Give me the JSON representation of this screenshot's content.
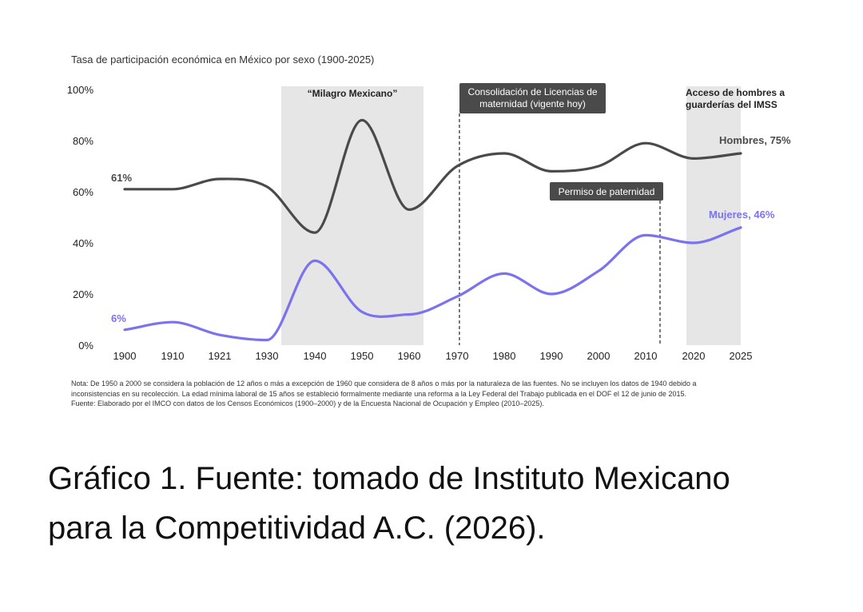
{
  "chart_data": {
    "type": "line",
    "title": "Tasa de participación económica en México por sexo (1900-2025)",
    "xlabel": "",
    "ylabel": "",
    "ylim": [
      0,
      100
    ],
    "x_ticks": [
      "1900",
      "1910",
      "1921",
      "1930",
      "1940",
      "1950",
      "1960",
      "1970",
      "1980",
      "1990",
      "2000",
      "2010",
      "2020",
      "2025"
    ],
    "y_ticks": [
      "0%",
      "20%",
      "40%",
      "60%",
      "80%",
      "100%"
    ],
    "y_tick_values": [
      0,
      20,
      40,
      60,
      80,
      100
    ],
    "series": [
      {
        "name": "Hombres",
        "label": "Hombres, 75%",
        "start_label": "61%",
        "color": "#4a4a4a",
        "points": [
          [
            1900,
            61
          ],
          [
            1910,
            61
          ],
          [
            1921,
            65
          ],
          [
            1930,
            62
          ],
          [
            1940,
            44
          ],
          [
            1950,
            88
          ],
          [
            1960,
            53
          ],
          [
            1970,
            70
          ],
          [
            1980,
            75
          ],
          [
            1990,
            68
          ],
          [
            2000,
            70
          ],
          [
            2010,
            79
          ],
          [
            2020,
            73
          ],
          [
            2025,
            75
          ]
        ]
      },
      {
        "name": "Mujeres",
        "label": "Mujeres, 46%",
        "start_label": "6%",
        "color": "#7b72f0",
        "points": [
          [
            1900,
            6
          ],
          [
            1910,
            9
          ],
          [
            1921,
            4
          ],
          [
            1930,
            2
          ],
          [
            1940,
            33
          ],
          [
            1950,
            13
          ],
          [
            1960,
            12
          ],
          [
            1970,
            19
          ],
          [
            1980,
            28
          ],
          [
            1990,
            20
          ],
          [
            2000,
            29
          ],
          [
            2010,
            43
          ],
          [
            2020,
            40
          ],
          [
            2025,
            46
          ]
        ]
      }
    ],
    "shaded_periods": [
      {
        "name": "Milagro Mexicano",
        "label": "“Milagro Mexicano”",
        "from": 1933,
        "to": 1963
      },
      {
        "name": "Acceso guarderías",
        "label_lines": [
          "Acceso de hombres a",
          "guarderías del IMSS"
        ],
        "from": 2018.5,
        "to": 2025
      }
    ],
    "annotations": [
      {
        "name": "Consolidación licencias",
        "x": 1970.5,
        "label_lines": [
          "Consolidación de Licencias de",
          "maternidad (vigente hoy)"
        ]
      },
      {
        "name": "Permiso de paternidad",
        "x": 2013,
        "label_lines": [
          "Permiso de paternidad"
        ]
      }
    ]
  },
  "notes": [
    "Nota: De 1950 a 2000 se considera la población de 12 años o más a excepción de 1960 que considera de 8 años o más por la naturaleza de las fuentes. No se incluyen los datos de 1940 debido a",
    "inconsistencias en su recolección. La edad mínima laboral de 15 años se estableció formalmente mediante una reforma a la Ley Federal del Trabajo publicada en el DOF el 12 de junio de 2015.",
    "Fuente: Elaborado por el IMCO con datos de los Censos Económicos (1900–2000) y de la Encuesta Nacional de Ocupación y Empleo (2010–2025)."
  ],
  "caption": [
    "Gráfico 1. Fuente: tomado de Instituto Mexicano",
    "para la Competitividad A.C. (2026)."
  ],
  "colors": {
    "shade": "#e6e6e6",
    "box": "#4a4a4a",
    "men": "#4a4a4a",
    "women": "#7b72f0"
  }
}
